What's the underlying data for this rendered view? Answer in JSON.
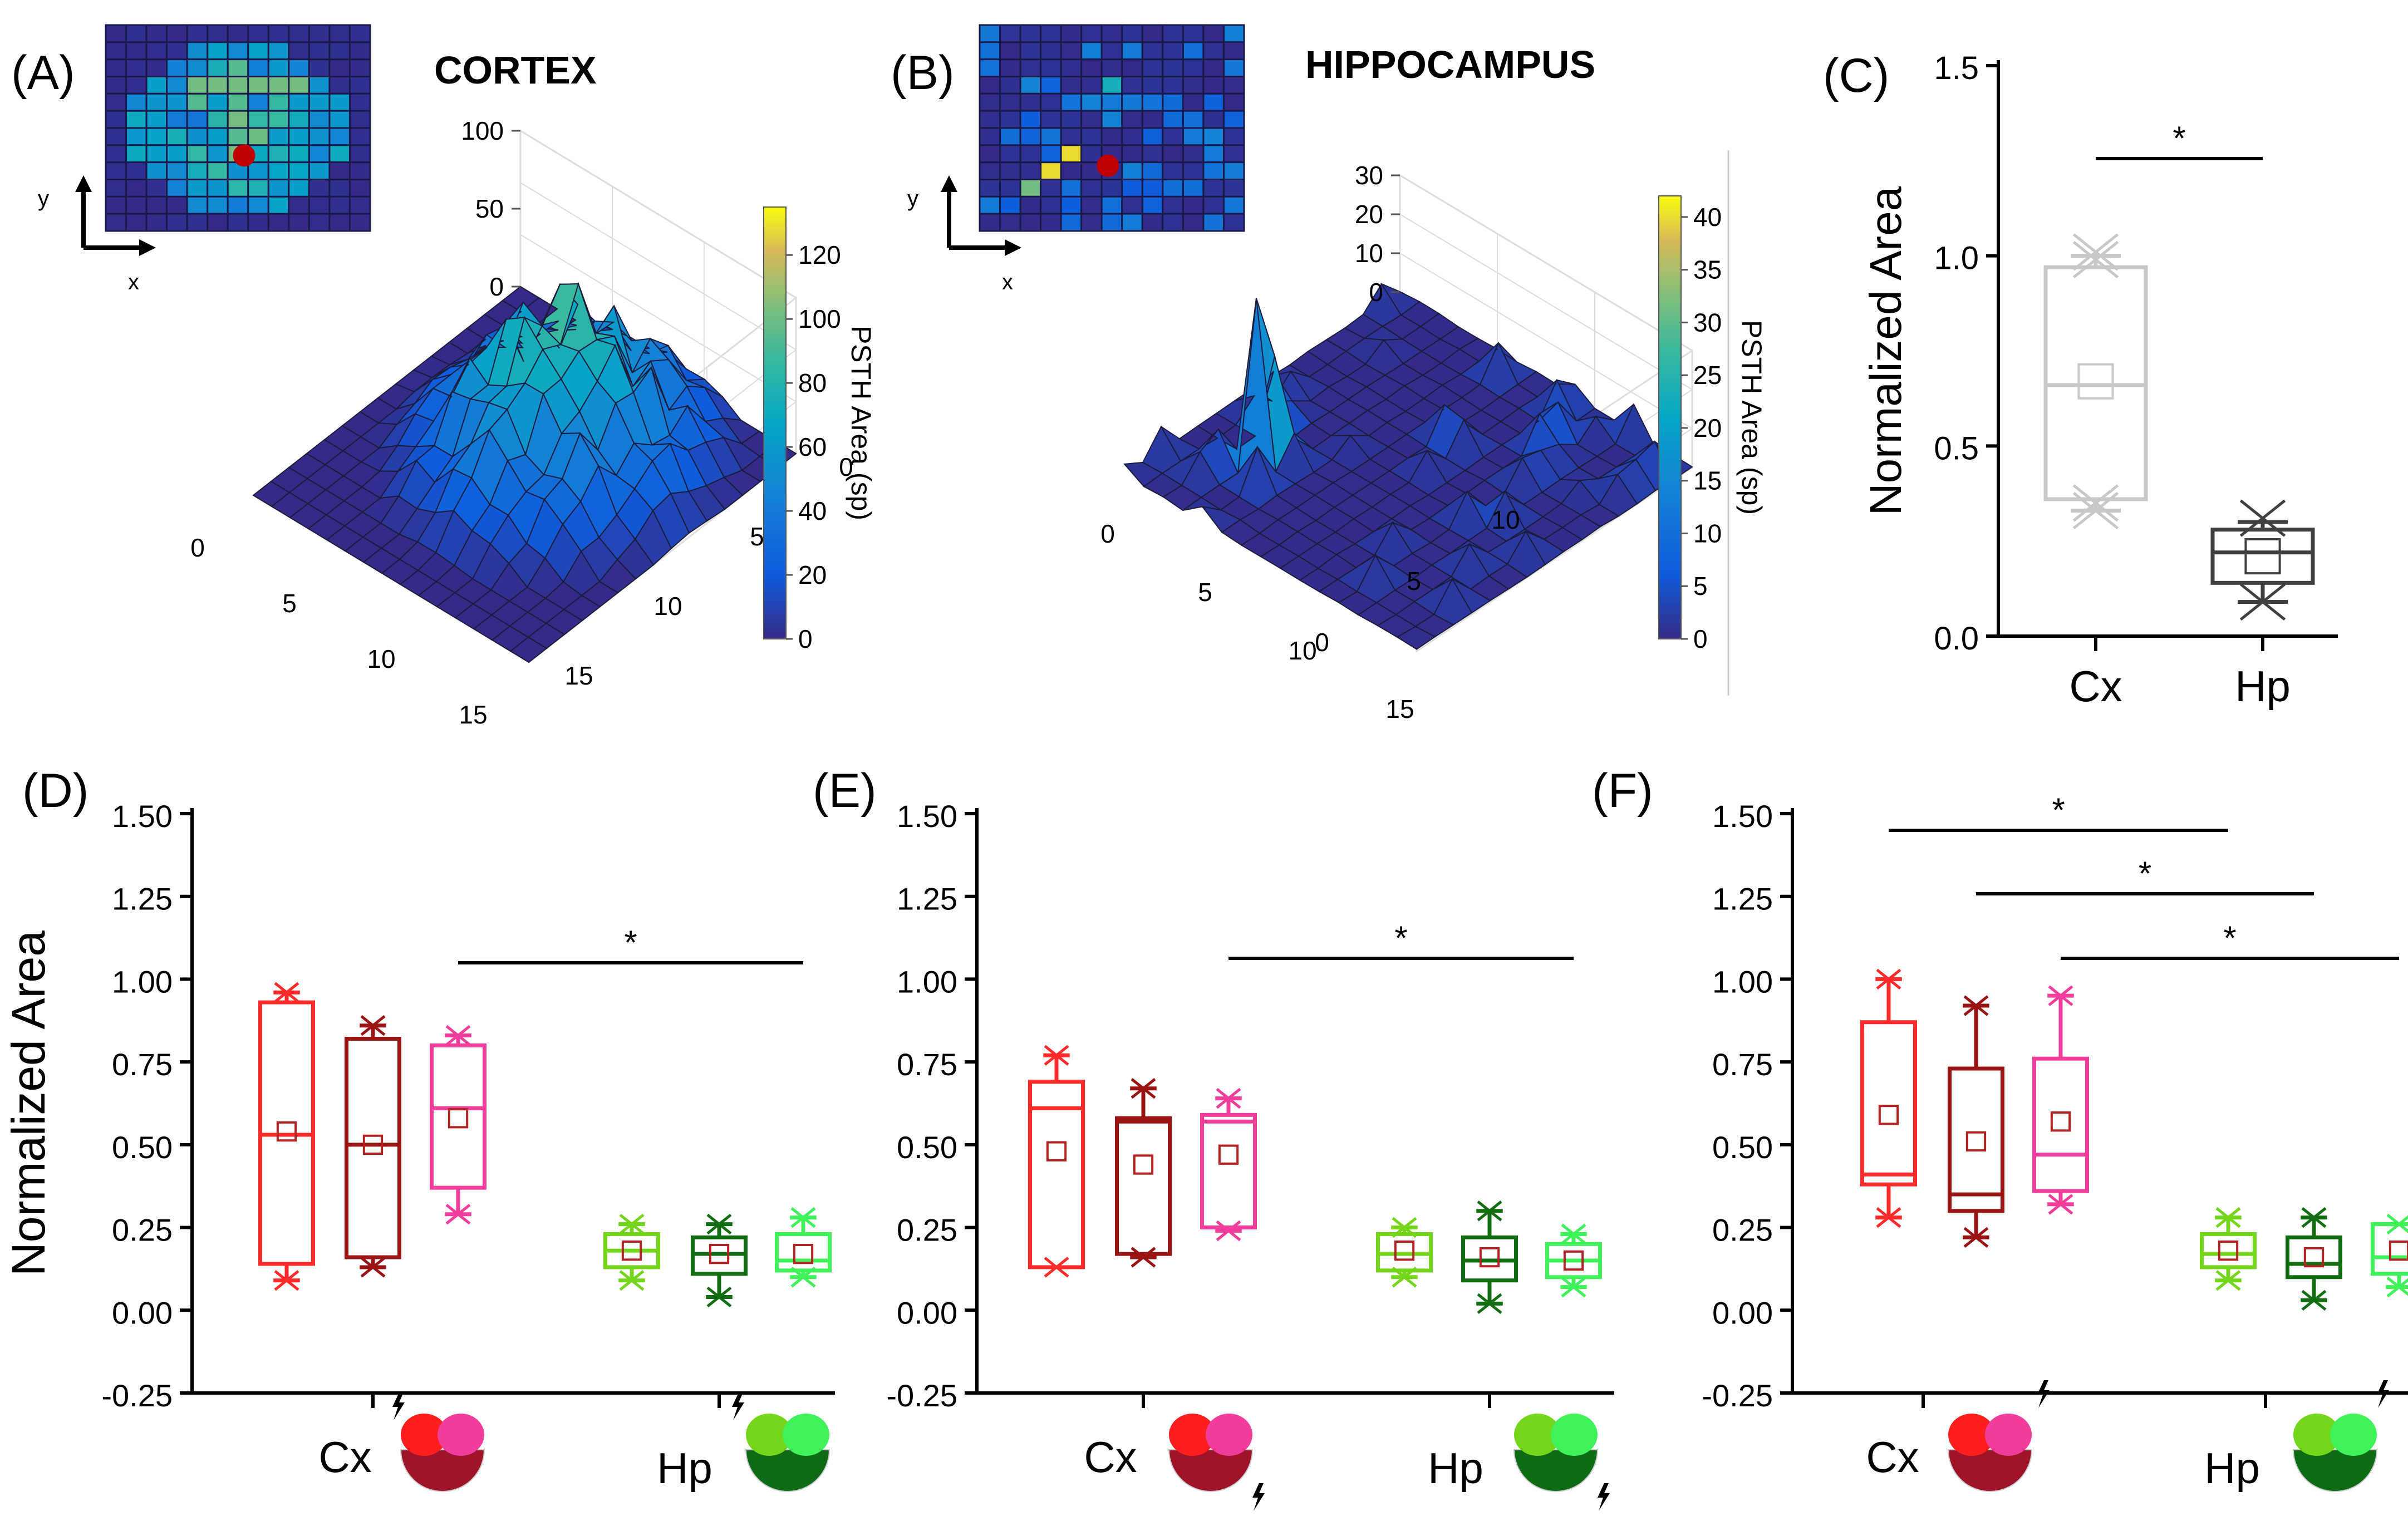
{
  "chart_data": [
    {
      "panel": "(A)",
      "type": "surface3d",
      "title": "CORTEX",
      "inset": {
        "type": "heatmap",
        "grid": [
          13,
          12
        ],
        "x_label": "x",
        "y_label": "y",
        "marker": "red-electrode-dot"
      },
      "z_ticks": [
        "0",
        "50",
        "100"
      ],
      "x_ticks": [
        "0",
        "5",
        "10",
        "15"
      ],
      "y_ticks": [
        "0",
        "5",
        "10",
        "15"
      ],
      "colorbar": {
        "label": "PSTH Area (sp)",
        "min": 0,
        "max": 135,
        "ticks": [
          "0",
          "20",
          "40",
          "60",
          "80",
          "100",
          "120"
        ]
      }
    },
    {
      "panel": "(B)",
      "type": "surface3d",
      "title": "HIPPOCAMPUS",
      "inset": {
        "type": "heatmap",
        "grid": [
          13,
          12
        ],
        "x_label": "x",
        "y_label": "y",
        "marker": "red-electrode-dot"
      },
      "z_ticks": [
        "0",
        "10",
        "20",
        "30"
      ],
      "x_ticks": [
        "0",
        "5",
        "10",
        "15"
      ],
      "y_ticks": [
        "0",
        "5",
        "10"
      ],
      "colorbar": {
        "label": "PSTH Area (sp)",
        "min": 0,
        "max": 42,
        "ticks": [
          "0",
          "5",
          "10",
          "15",
          "20",
          "25",
          "30",
          "35",
          "40"
        ]
      }
    },
    {
      "panel": "(C)",
      "type": "box",
      "ylabel": "Normalized Area",
      "ylim": [
        0,
        1.5
      ],
      "yticks": [
        "0.0",
        "0.5",
        "1.0",
        "1.5"
      ],
      "categories": [
        "Cx",
        "Hp"
      ],
      "boxes": [
        {
          "name": "Cx",
          "color": "#c8c8c8",
          "q1": 0.36,
          "median": 0.66,
          "q3": 0.97,
          "mean": 0.67,
          "whisker_low": 0.33,
          "whisker_high": 1.0,
          "outliers": [
            0.33,
            0.35,
            0.99,
            1.01
          ]
        },
        {
          "name": "Hp",
          "color": "#404040",
          "q1": 0.14,
          "median": 0.22,
          "q3": 0.28,
          "mean": 0.21,
          "whisker_low": 0.09,
          "whisker_high": 0.3,
          "outliers": [
            0.09,
            0.31
          ]
        }
      ],
      "significance": [
        {
          "from": "Cx",
          "to": "Hp",
          "label": "*"
        }
      ]
    },
    {
      "panel": "(D)",
      "type": "box",
      "ylabel": "Normalized Area",
      "ylim": [
        -0.25,
        1.5
      ],
      "yticks": [
        "-0.25",
        "0.00",
        "0.25",
        "0.50",
        "0.75",
        "1.00",
        "1.25",
        "1.50"
      ],
      "groups": [
        "Cx",
        "Hp"
      ],
      "boxes": [
        {
          "color": "#ff2a2a",
          "q1": 0.14,
          "median": 0.53,
          "q3": 0.93,
          "mean": 0.54,
          "outliers": [
            0.09,
            0.96
          ]
        },
        {
          "color": "#9b1414",
          "q1": 0.16,
          "median": 0.5,
          "q3": 0.82,
          "mean": 0.5,
          "outliers": [
            0.13,
            0.86
          ]
        },
        {
          "color": "#f03c9a",
          "q1": 0.37,
          "median": 0.61,
          "q3": 0.8,
          "mean": 0.58,
          "outliers": [
            0.29,
            0.83
          ]
        },
        {
          "color": "#74d61a",
          "q1": 0.13,
          "median": 0.18,
          "q3": 0.23,
          "mean": 0.18,
          "outliers": [
            0.09,
            0.26
          ]
        },
        {
          "color": "#136e13",
          "q1": 0.11,
          "median": 0.17,
          "q3": 0.22,
          "mean": 0.17,
          "outliers": [
            0.04,
            0.26
          ]
        },
        {
          "color": "#3ff25a",
          "q1": 0.12,
          "median": 0.15,
          "q3": 0.23,
          "mean": 0.17,
          "outliers": [
            0.1,
            0.28
          ]
        }
      ],
      "significance": [
        {
          "from_box": 2,
          "to_box": 5,
          "label": "*"
        }
      ]
    },
    {
      "panel": "(E)",
      "type": "box",
      "ylim": [
        -0.25,
        1.5
      ],
      "yticks": [
        "-0.25",
        "0.00",
        "0.25",
        "0.50",
        "0.75",
        "1.00",
        "1.25",
        "1.50"
      ],
      "groups": [
        "Cx",
        "Hp"
      ],
      "boxes": [
        {
          "color": "#ff2a2a",
          "q1": 0.13,
          "median": 0.61,
          "q3": 0.69,
          "mean": 0.48,
          "outliers": [
            0.13,
            0.77
          ]
        },
        {
          "color": "#9b1414",
          "q1": 0.17,
          "median": 0.57,
          "q3": 0.58,
          "mean": 0.44,
          "outliers": [
            0.16,
            0.67
          ]
        },
        {
          "color": "#f03c9a",
          "q1": 0.25,
          "median": 0.57,
          "q3": 0.59,
          "mean": 0.47,
          "outliers": [
            0.24,
            0.64
          ]
        },
        {
          "color": "#74d61a",
          "q1": 0.12,
          "median": 0.17,
          "q3": 0.23,
          "mean": 0.18,
          "outliers": [
            0.1,
            0.25
          ]
        },
        {
          "color": "#136e13",
          "q1": 0.09,
          "median": 0.15,
          "q3": 0.22,
          "mean": 0.16,
          "outliers": [
            0.02,
            0.3
          ]
        },
        {
          "color": "#3ff25a",
          "q1": 0.1,
          "median": 0.15,
          "q3": 0.2,
          "mean": 0.15,
          "outliers": [
            0.07,
            0.23
          ]
        }
      ],
      "significance": [
        {
          "from_box": 2,
          "to_box": 5,
          "label": "*"
        }
      ]
    },
    {
      "panel": "(F)",
      "type": "box",
      "ylim": [
        -0.25,
        1.5
      ],
      "yticks": [
        "-0.25",
        "0.00",
        "0.25",
        "0.50",
        "0.75",
        "1.00",
        "1.25",
        "1.50"
      ],
      "groups": [
        "Cx",
        "Hp"
      ],
      "boxes": [
        {
          "color": "#ff2a2a",
          "q1": 0.38,
          "median": 0.41,
          "q3": 0.87,
          "mean": 0.59,
          "outliers": [
            0.28,
            1.0
          ]
        },
        {
          "color": "#9b1414",
          "q1": 0.3,
          "median": 0.35,
          "q3": 0.73,
          "mean": 0.51,
          "outliers": [
            0.22,
            0.92
          ]
        },
        {
          "color": "#f03c9a",
          "q1": 0.36,
          "median": 0.47,
          "q3": 0.76,
          "mean": 0.57,
          "outliers": [
            0.32,
            0.95
          ]
        },
        {
          "color": "#74d61a",
          "q1": 0.13,
          "median": 0.17,
          "q3": 0.23,
          "mean": 0.18,
          "outliers": [
            0.09,
            0.28
          ]
        },
        {
          "color": "#136e13",
          "q1": 0.1,
          "median": 0.14,
          "q3": 0.22,
          "mean": 0.16,
          "outliers": [
            0.03,
            0.28
          ]
        },
        {
          "color": "#3ff25a",
          "q1": 0.11,
          "median": 0.16,
          "q3": 0.26,
          "mean": 0.18,
          "outliers": [
            0.07,
            0.26
          ]
        }
      ],
      "significance": [
        {
          "from_box": 0,
          "to_box": 3,
          "label": "*"
        },
        {
          "from_box": 1,
          "to_box": 4,
          "label": "*"
        },
        {
          "from_box": 2,
          "to_box": 5,
          "label": "*"
        }
      ]
    }
  ]
}
